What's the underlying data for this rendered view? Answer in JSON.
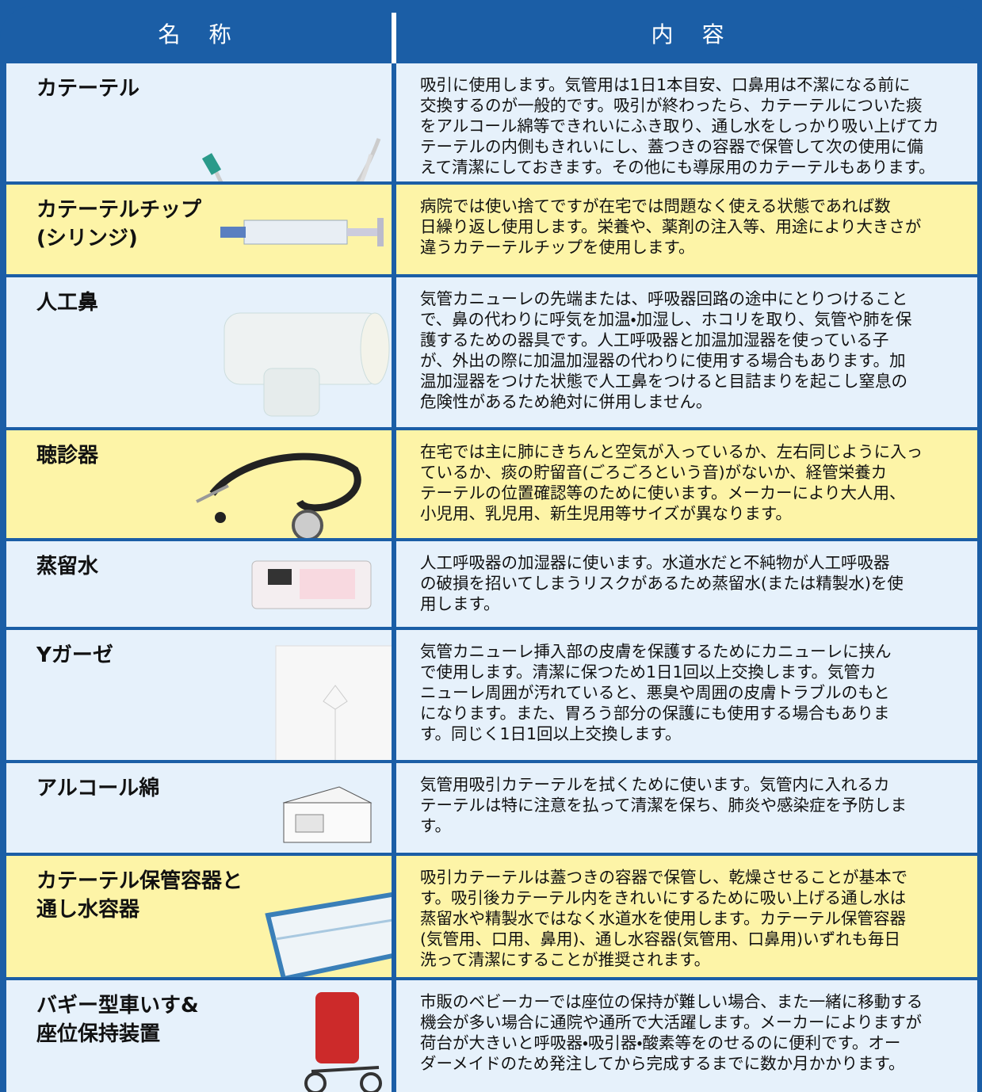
{
  "header": {
    "name": "名　称",
    "content": "内　容"
  },
  "table": {
    "rows": [
      {
        "highlighted": false,
        "name": [
          "カテーテル"
        ],
        "description": [
          "吸引に使用します。気管用は1日1本目安、口鼻用は不潔になる前に",
          "交換するのが一般的です。吸引が終わったら、カテーテルについた痰",
          "をアルコール綿等できれいにふき取り、通し水をしっかり吸い上げてカ",
          "テーテルの内側もきれいにし、蓋つきの容器で保管して次の使用に備",
          "えて清潔にしておきます。その他にも導尿用のカテーテルもあります。"
        ]
      },
      {
        "highlighted": true,
        "name": [
          "カテーテルチップ",
          "(シリンジ)"
        ],
        "description": [
          "病院では使い捨てですが在宅では問題なく使える状態であれば数",
          "日繰り返し使用します。栄養や、薬剤の注入等、用途により大きさが",
          "違うカテーテルチップを使用します。"
        ]
      },
      {
        "highlighted": false,
        "name": [
          "人工鼻"
        ],
        "description": [
          "気管カニューレの先端または、呼吸器回路の途中にとりつけること",
          "で、鼻の代わりに呼気を加温・加湿し、ホコリを取り、気管や肺を保",
          "護するための器具です。人工呼吸器と加温加湿器を使っている子",
          "が、外出の際に加温加湿器の代わりに使用する場合もあります。加",
          "温加湿器をつけた状態で人工鼻をつけると目詰まりを起こし窒息の",
          "危険性があるため絶対に併用しません。"
        ]
      },
      {
        "highlighted": true,
        "name": [
          "聴診器"
        ],
        "description": [
          "在宅では主に肺にきちんと空気が入っているか、左右同じように入っ",
          "ているか、痰の貯留音(ごろごろという音)がないか、経管栄養カ",
          "テーテルの位置確認等のために使います。メーカーにより大人用、",
          "小児用、乳児用、新生児用等サイズが異なります。"
        ]
      },
      {
        "highlighted": false,
        "name": [
          "蒸留水"
        ],
        "description": [
          "人工呼吸器の加湿器に使います。水道水だと不純物が人工呼吸器",
          "の破損を招いてしまうリスクがあるため蒸留水(または精製水)を使",
          "用します。"
        ]
      },
      {
        "highlighted": false,
        "name": [
          "Yガーゼ"
        ],
        "description": [
          "気管カニューレ挿入部の皮膚を保護するためにカニューレに挟ん",
          "で使用します。清潔に保つため1日1回以上交換します。気管カ",
          "ニューレ周囲が汚れていると、悪臭や周囲の皮膚トラブルのもと",
          "になります。また、胃ろう部分の保護にも使用する場合もありま",
          "す。同じく1日1回以上交換します。"
        ]
      },
      {
        "highlighted": false,
        "name": [
          "アルコール綿"
        ],
        "description": [
          "気管用吸引カテーテルを拭くために使います。気管内に入れるカ",
          "テーテルは特に注意を払って清潔を保ち、肺炎や感染症を予防しま",
          "す。"
        ]
      },
      {
        "highlighted": true,
        "name": [
          "カテーテル保管容器と",
          "通し水容器"
        ],
        "description": [
          "吸引カテーテルは蓋つきの容器で保管し、乾燥させることが基本で",
          "す。吸引後カテーテル内をきれいにするために吸い上げる通し水は",
          "蒸留水や精製水ではなく水道水を使用します。カテーテル保管容器",
          "(気管用、口用、鼻用)、通し水容器(気管用、口鼻用)いずれも毎日",
          "洗って清潔にすることが推奨されます。"
        ]
      },
      {
        "highlighted": false,
        "name": [
          "バギー型車いす&",
          "座位保持装置"
        ],
        "description": [
          "市販のベビーカーでは座位の保持が難しい場合、また一緒に移動する",
          "機会が多い場合に通院や通所で大活躍します。メーカーによりますが",
          "荷台が大きいと呼吸器・吸引器・酸素等をのせるのに便利です。オー",
          "ダーメイドのため発注してから完成するまでに数か月かかります。"
        ]
      }
    ]
  }
}
